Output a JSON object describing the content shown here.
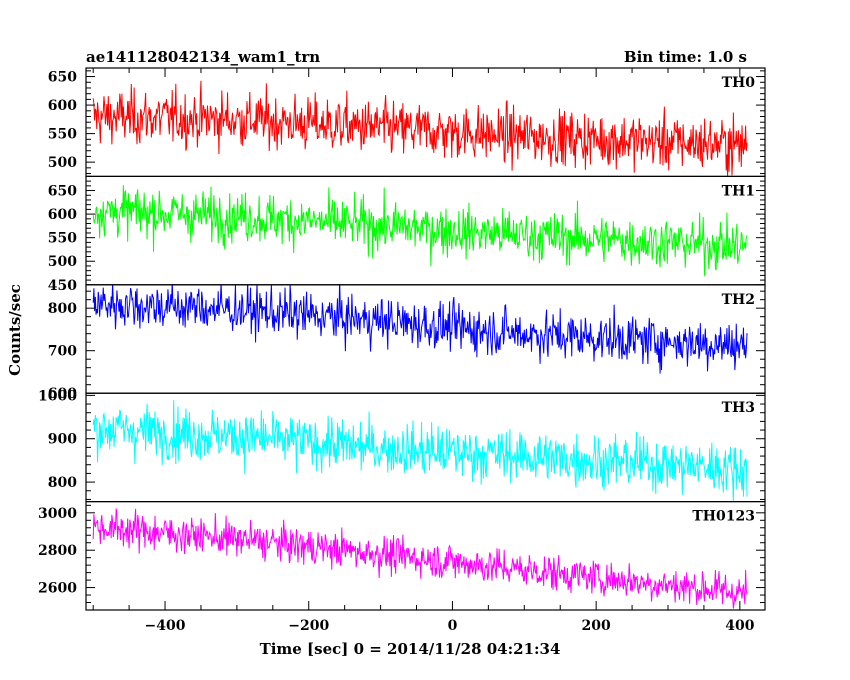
{
  "chart_data": {
    "type": "line",
    "title": "ae141128042134_wam1_trn",
    "bin_time_label": "Bin time: 1.0 s",
    "xlabel": "Time [sec] 0 = 2014/11/28 04:21:34",
    "ylabel": "Counts/sec",
    "xlim": [
      -510,
      435
    ],
    "xticks": [
      -400,
      -200,
      0,
      200,
      400
    ],
    "x_range": [
      -500,
      410
    ],
    "panels": [
      {
        "name": "TH0",
        "color": "#ff0000",
        "ylim": [
          475,
          665
        ],
        "yticks": [
          500,
          550,
          600,
          650
        ],
        "trend": [
          [
            -500,
            580
          ],
          [
            -300,
            575
          ],
          [
            -100,
            560
          ],
          [
            100,
            545
          ],
          [
            410,
            530
          ]
        ],
        "noise": 24
      },
      {
        "name": "TH1",
        "color": "#00ff00",
        "ylim": [
          450,
          680
        ],
        "yticks": [
          450,
          500,
          550,
          600,
          650
        ],
        "trend": [
          [
            -500,
            608
          ],
          [
            -300,
            595
          ],
          [
            -100,
            575
          ],
          [
            100,
            555
          ],
          [
            410,
            532
          ]
        ],
        "noise": 26
      },
      {
        "name": "TH2",
        "color": "#0000ff",
        "ylim": [
          600,
          855
        ],
        "yticks": [
          600,
          700,
          800
        ],
        "trend": [
          [
            -500,
            812
          ],
          [
            -300,
            797
          ],
          [
            -100,
            770
          ],
          [
            100,
            740
          ],
          [
            410,
            712
          ]
        ],
        "noise": 28
      },
      {
        "name": "TH3",
        "color": "#00ffff",
        "ylim": [
          755,
          1005
        ],
        "yticks": [
          800,
          900,
          1000
        ],
        "trend": [
          [
            -500,
            925
          ],
          [
            -300,
            905
          ],
          [
            -100,
            878
          ],
          [
            100,
            860
          ],
          [
            410,
            830
          ]
        ],
        "noise": 30
      },
      {
        "name": "TH0123",
        "color": "#ff00ff",
        "ylim": [
          2480,
          3060
        ],
        "yticks": [
          2600,
          2800,
          3000
        ],
        "trend": [
          [
            -500,
            2925
          ],
          [
            -300,
            2860
          ],
          [
            -100,
            2780
          ],
          [
            100,
            2695
          ],
          [
            410,
            2570
          ]
        ],
        "noise": 48
      }
    ]
  }
}
